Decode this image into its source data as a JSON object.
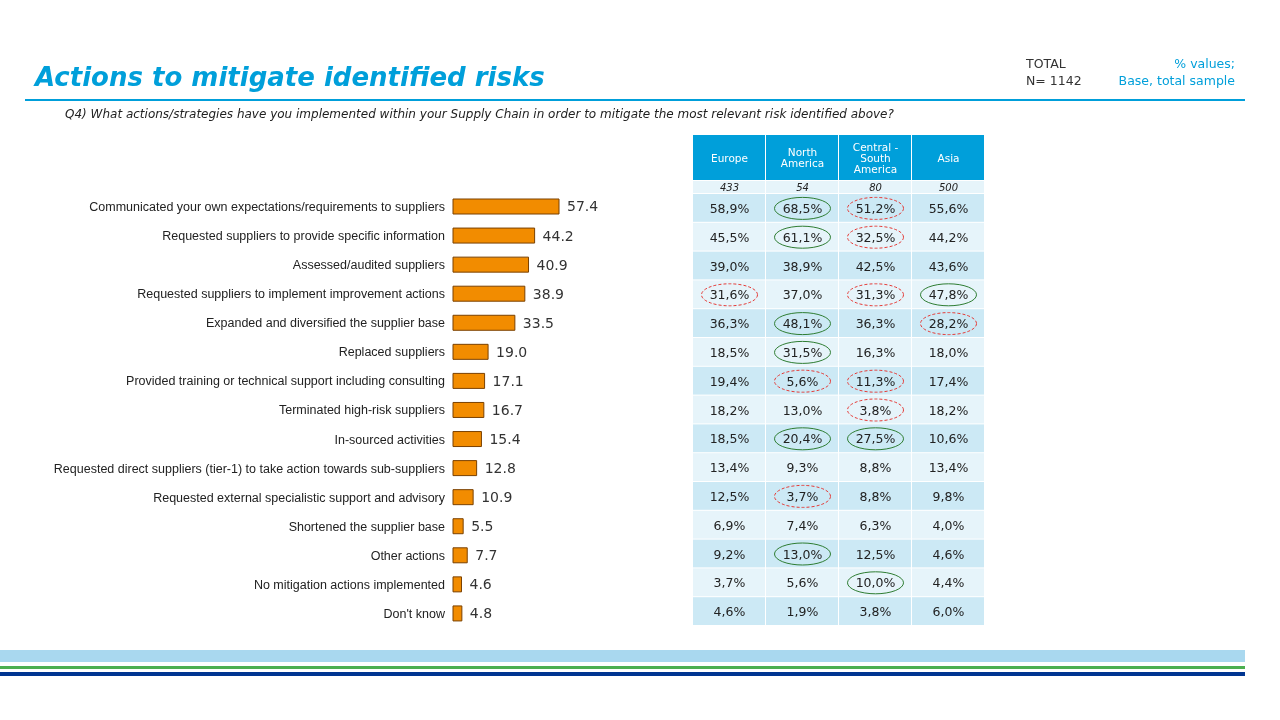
{
  "chart_data": [
    {
      "type": "bar",
      "orientation": "horizontal",
      "title": "Actions to mitigate identified risks",
      "subtitle": "Q4) What actions/strategies have you implemented within your Supply Chain in order to mitigate the most relevant risk identified above?",
      "annotations": [
        "TOTAL",
        "N= 1142",
        "% values;",
        "Base, total sample"
      ],
      "categories": [
        "Communicated your own expectations/requirements to suppliers",
        "Requested suppliers to provide specific information",
        "Assessed/audited suppliers",
        "Requested suppliers to implement improvement actions",
        "Expanded and diversified the supplier base",
        "Replaced suppliers",
        "Provided training or technical support including consulting",
        "Terminated high-risk suppliers",
        "In-sourced activities",
        "Requested direct suppliers (tier-1) to take action towards sub-suppliers",
        "Requested external specialistic support and advisory",
        "Shortened the supplier base",
        "Other actions",
        "No mitigation actions implemented",
        "Don't know"
      ],
      "values": [
        57.4,
        44.2,
        40.9,
        38.9,
        33.5,
        19.0,
        17.1,
        16.7,
        15.4,
        12.8,
        10.9,
        5.5,
        7.7,
        4.6,
        4.8
      ],
      "value_labels": [
        "57.4",
        "44.2",
        "40.9",
        "38.9",
        "33.5",
        "19.0",
        "17.1",
        "16.7",
        "15.4",
        "12.8",
        "10.9",
        "5.5",
        "7.7",
        "4.6",
        "4.8"
      ],
      "color": "#f28c00"
    },
    {
      "type": "other",
      "annotations": [
        "Europe",
        "North America",
        "Central - South America",
        "Asia",
        "433",
        "54",
        "80",
        "500",
        "58,9%",
        "68,5%",
        "51,2%",
        "55,6%",
        "45,5%",
        "61,1%",
        "32,5%",
        "44,2%",
        "39,0%",
        "38,9%",
        "42,5%",
        "43,6%",
        "31,6%",
        "37,0%",
        "31,3%",
        "47,8%",
        "36,3%",
        "48,1%",
        "36,3%",
        "28,2%",
        "18,5%",
        "31,5%",
        "16,3%",
        "18,0%",
        "19,4%",
        "5,6%",
        "11,3%",
        "17,4%",
        "18,2%",
        "13,0%",
        "3,8%",
        "18,2%",
        "18,5%",
        "20,4%",
        "27,5%",
        "10,6%",
        "13,4%",
        "9,3%",
        "8,8%",
        "13,4%",
        "12,5%",
        "3,7%",
        "8,8%",
        "9,8%",
        "6,9%",
        "7,4%",
        "6,3%",
        "4,0%",
        "9,2%",
        "13,0%",
        "12,5%",
        "4,6%",
        "3,7%",
        "5,6%",
        "10,0%",
        "4,4%",
        "4,6%",
        "1,9%",
        "3,8%",
        "6,0%"
      ]
    }
  ]
}
